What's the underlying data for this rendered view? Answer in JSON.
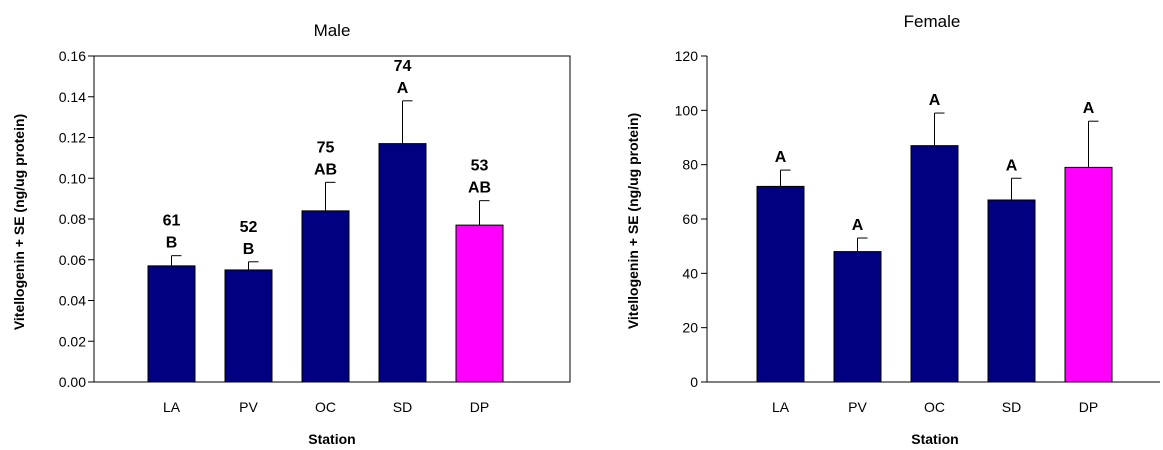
{
  "chart_data": [
    {
      "type": "bar",
      "title": "Male",
      "xlabel": "Station",
      "ylabel": "Vitellogenin + SE (ng/ug protein)",
      "categories": [
        "LA",
        "PV",
        "OC",
        "SD",
        "DP"
      ],
      "values": [
        0.057,
        0.055,
        0.084,
        0.117,
        0.077
      ],
      "errors": [
        0.005,
        0.004,
        0.014,
        0.021,
        0.012
      ],
      "ylim": [
        0,
        0.16
      ],
      "yticks": [
        "0.00",
        "0.02",
        "0.04",
        "0.06",
        "0.08",
        "0.10",
        "0.12",
        "0.14",
        "0.16"
      ],
      "annotations_top": [
        "61",
        "52",
        "75",
        "74",
        "53"
      ],
      "annotations_letter": [
        "B",
        "B",
        "AB",
        "A",
        "AB"
      ],
      "bar_colors": [
        "#000080",
        "#000080",
        "#000080",
        "#000080",
        "#FF00FF"
      ]
    },
    {
      "type": "bar",
      "title": "Female",
      "xlabel": "Station",
      "ylabel": "Vitellogenin + SE (ng/ug protein)",
      "categories": [
        "LA",
        "PV",
        "OC",
        "SD",
        "DP"
      ],
      "values": [
        72,
        48,
        87,
        67,
        79
      ],
      "errors": [
        6,
        5,
        12,
        8,
        17
      ],
      "ylim": [
        0,
        120
      ],
      "yticks": [
        "0",
        "20",
        "40",
        "60",
        "80",
        "100",
        "120"
      ],
      "annotations_top": [
        "",
        "",
        "",
        "",
        ""
      ],
      "annotations_letter": [
        "A",
        "A",
        "A",
        "A",
        "A"
      ],
      "bar_colors": [
        "#000080",
        "#000080",
        "#000080",
        "#000080",
        "#FF00FF"
      ]
    }
  ]
}
